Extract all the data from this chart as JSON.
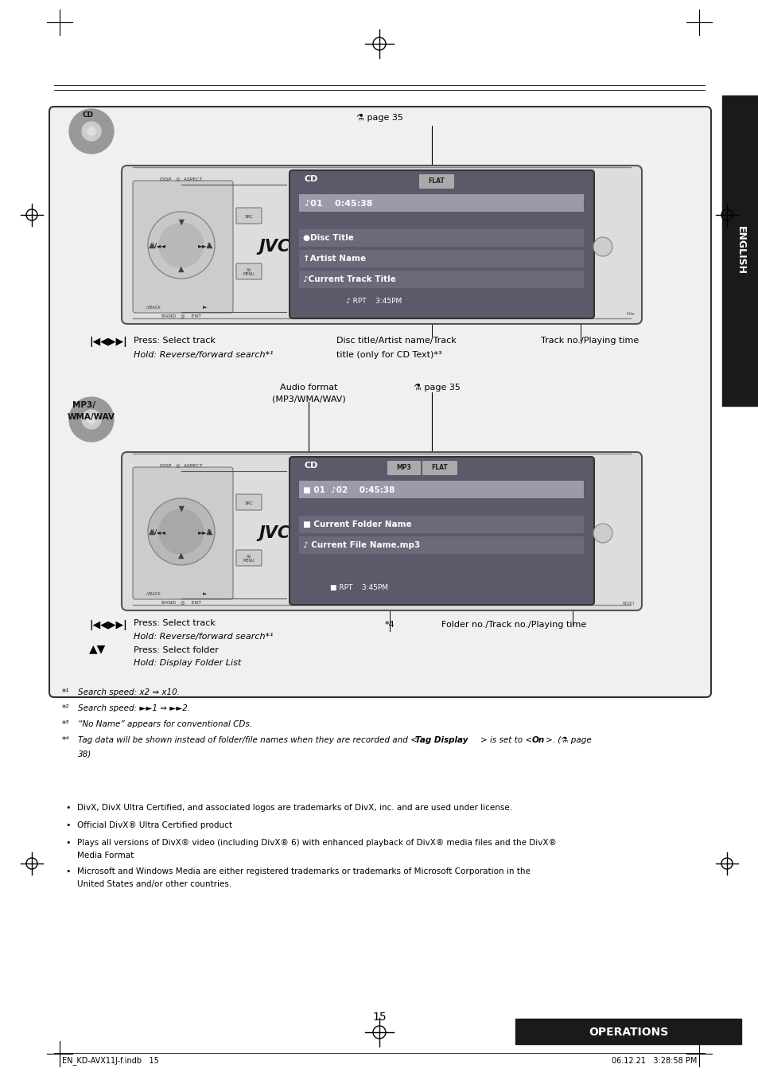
{
  "page_bg": "#ffffff",
  "page_number": "15",
  "operations_label": "OPERATIONS",
  "operations_bg": "#1a1a1a",
  "operations_text_color": "#ffffff",
  "english_label": "ENGLISH",
  "english_bg": "#1a1a1a",
  "english_text_color": "#ffffff",
  "footer_left": "EN_KD-AVX11J-f.indb   15",
  "footer_right": "06.12.21   3:28:58 PM",
  "page_ref": "⚗ page 35",
  "cd_line1": "CD",
  "cd_flat": "FLAT",
  "cd_track_time": "♪01    0:45:38",
  "cd_text1": "●Disc Title",
  "cd_text2": "↑Artist Name",
  "cd_text3": "♪Current Track Title",
  "cd_bottom": "♪ RPT    3:45PM",
  "mp3_line1": "CD",
  "mp3_tag1": "MP3",
  "mp3_tag2": "FLAT",
  "mp3_track_time": "■ 01  ♪02    0:45:38",
  "mp3_text1": "■ Current Folder Name",
  "mp3_text2": "♪ Current File Name.mp3",
  "mp3_bottom": "■ RPT    3:45PM",
  "cd_press": "Press: Select track",
  "cd_hold": "Hold: Reverse/forward search*¹",
  "cd_disc_label1": "Disc title/Artist name/Track",
  "cd_disc_label2": "title (only for CD Text)*³",
  "cd_track_label": "Track no./Playing time",
  "mp3_press": "Press: Select track",
  "mp3_hold": "Hold: Reverse/forward search*¹",
  "mp3_audio1": "Audio format",
  "mp3_audio2": "(MP3/WMA/WAV)",
  "mp3_updown_press": "Press: Select folder",
  "mp3_updown_hold": "Hold: Display Folder List",
  "mp3_star4": "*4",
  "mp3_folder_label": "Folder no./Track no./Playing time",
  "fn1_marker": "*¹",
  "fn1_text": "Search speed: x2 ⇒ x10.",
  "fn2_marker": "*²",
  "fn2_text": "Search speed: ►►1 ⇒ ►►2.",
  "fn3_marker": "*³",
  "fn3_text": "“No Name” appears for conventional CDs.",
  "fn4_marker": "*⁴",
  "fn4_pre": "Tag data will be shown instead of folder/file names when they are recorded and <",
  "fn4_bold1": "Tag Display",
  "fn4_mid": "> is set to <",
  "fn4_bold2": "On",
  "fn4_post": ">. (⚗ page",
  "fn4_line2": "38)",
  "bullet1": "DivX, DivX Ultra Certified, and associated logos are trademarks of DivX, inc. and are used under license.",
  "bullet2": "Official DivX® Ultra Certified product",
  "bullet3a": "Plays all versions of DivX® video (including DivX® 6) with enhanced playback of DivX® media files and the DivX®",
  "bullet3b": "Media Format",
  "bullet4a": "Microsoft and Windows Media are either registered trademarks or trademarks of Microsoft Corporation in the",
  "bullet4b": "United States and/or other countries.",
  "inner_box_bg": "#f0f0f0",
  "display_bg": "#5a5a6a",
  "display_highlight1": "#9a9aaa",
  "display_highlight2": "#6a6a7a"
}
